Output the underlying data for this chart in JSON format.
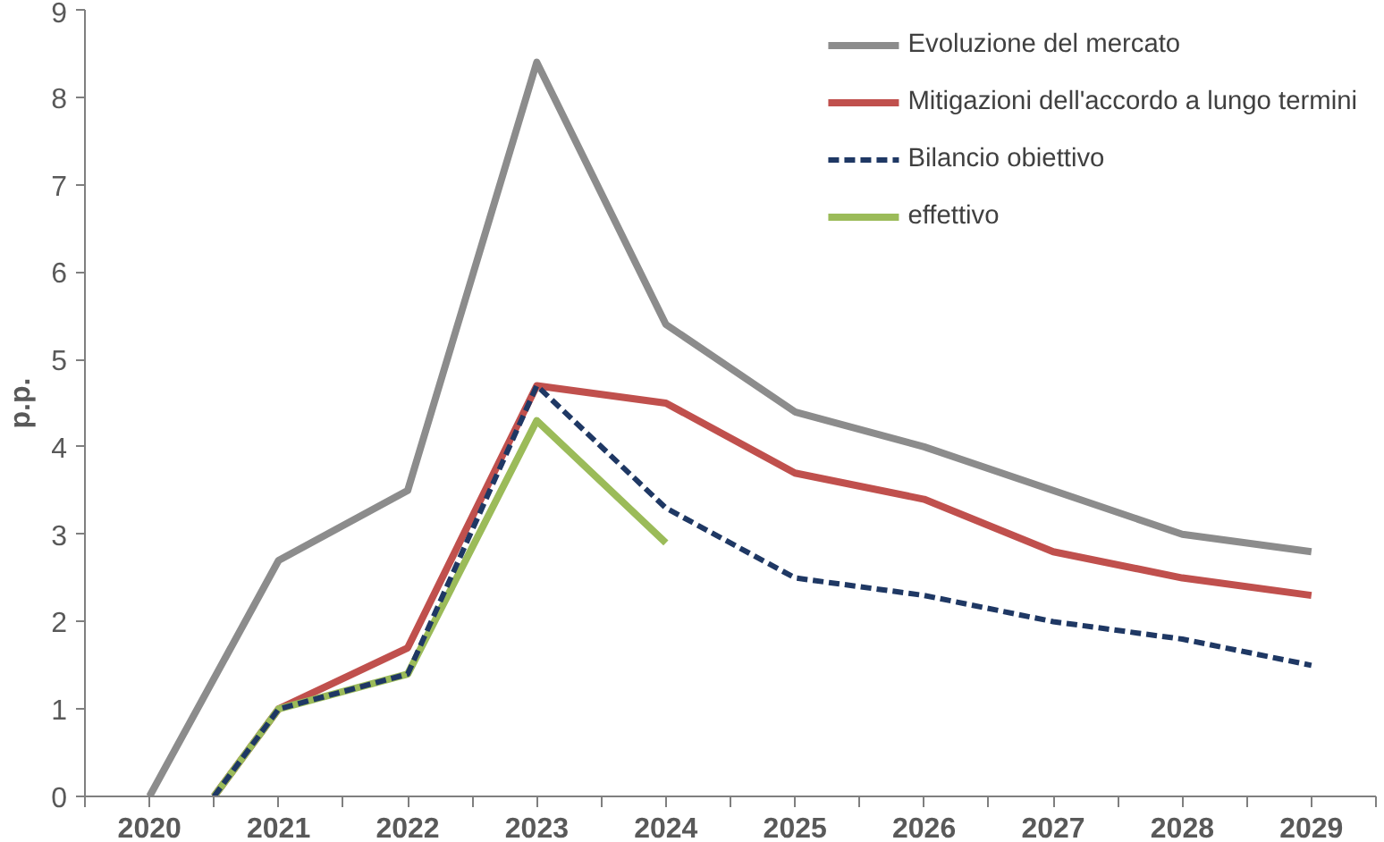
{
  "chart_data": {
    "type": "line",
    "ylabel": "p.p.",
    "xlim": [
      2019.5,
      2029.5
    ],
    "xticks": [
      {
        "value": 2019.5,
        "label": null
      },
      2020,
      {
        "value": 2020.5,
        "label": null
      },
      2021,
      {
        "value": 2021.5,
        "label": null
      },
      2022,
      {
        "value": 2022.5,
        "label": null
      },
      2023,
      {
        "value": 2023.5,
        "label": null
      },
      2024,
      {
        "value": 2024.5,
        "label": null
      },
      2025,
      {
        "value": 2025.5,
        "label": null
      },
      2026,
      {
        "value": 2026.5,
        "label": null
      },
      2027,
      {
        "value": 2027.5,
        "label": null
      },
      2028,
      {
        "value": 2028.5,
        "label": null
      },
      2029,
      {
        "value": 2029.5,
        "label": null
      }
    ],
    "ylim": [
      0,
      9
    ],
    "yticks": [
      0,
      1,
      2,
      3,
      4,
      5,
      6,
      7,
      8,
      9
    ],
    "grid": false,
    "legend": "top right",
    "line_style": "solid",
    "marker": "none",
    "series": [
      {
        "name": "Evoluzione del mercato",
        "color": "#8c8c8c",
        "x": [
          2020,
          2021,
          2022,
          2023,
          2024,
          2025,
          2026,
          2027,
          2028,
          2029
        ],
        "values": [
          0,
          2.7,
          3.5,
          8.4,
          5.4,
          4.4,
          4.0,
          3.5,
          3.0,
          2.8
        ]
      },
      {
        "name": "Mitigazioni dell'accordo a lungo termini",
        "color": "#c0504d",
        "x": [
          2020.5,
          2021,
          2022,
          2023,
          2024,
          2025,
          2026,
          2027,
          2028,
          2029
        ],
        "values": [
          0,
          1.0,
          1.7,
          4.7,
          4.5,
          3.7,
          3.4,
          2.8,
          2.5,
          2.3
        ]
      },
      {
        "name": "Bilancio obiettivo",
        "color": "#1f3864",
        "line_style": "dashed",
        "x": [
          2020.5,
          2021,
          2022,
          2023,
          2024,
          2025,
          2026,
          2027,
          2028,
          2029
        ],
        "values": [
          0,
          1.0,
          1.4,
          4.7,
          3.3,
          2.5,
          2.3,
          2.0,
          1.8,
          1.5
        ]
      },
      {
        "name": "effettivo",
        "color": "#9bbb59",
        "x": [
          2020.5,
          2021,
          2022,
          2023,
          2024
        ],
        "values": [
          0,
          1.0,
          1.4,
          4.3,
          2.9
        ]
      }
    ]
  }
}
